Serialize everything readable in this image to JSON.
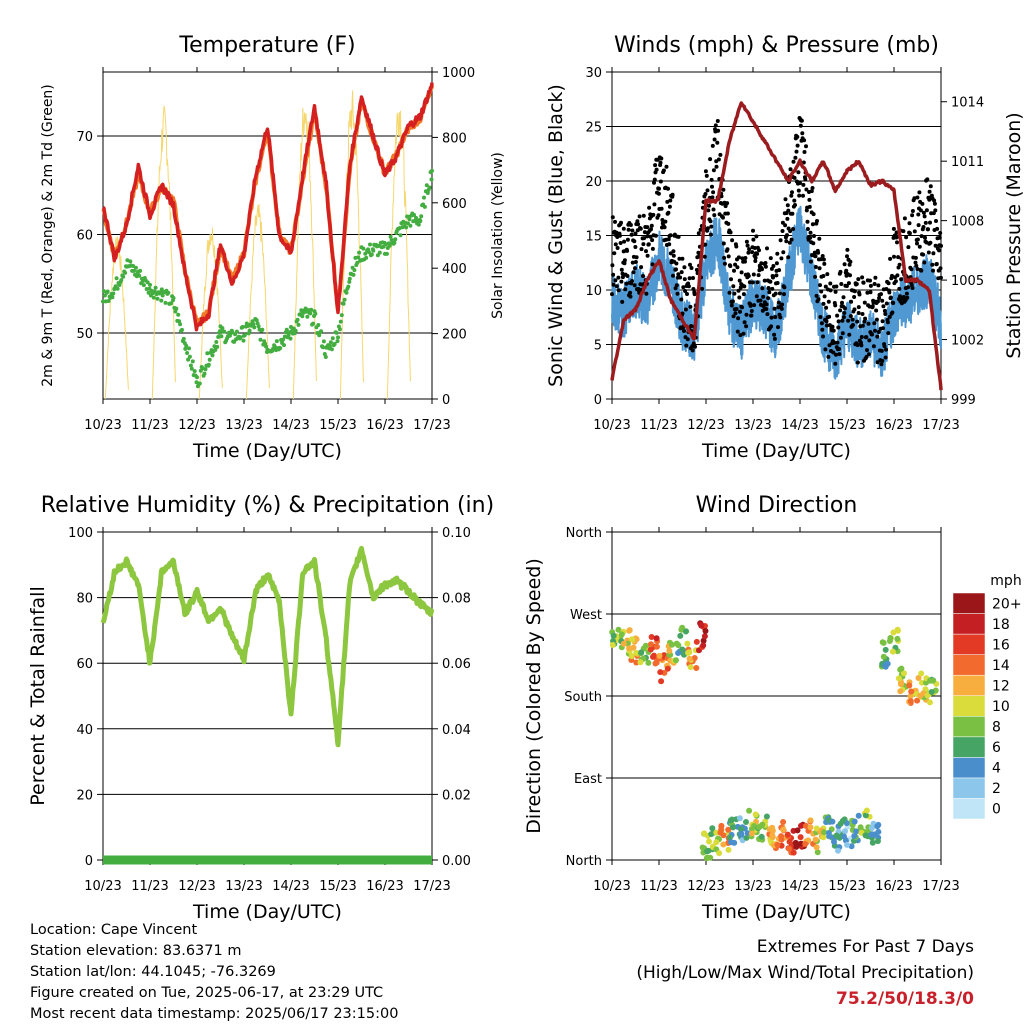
{
  "x_ticks": [
    "10/23",
    "11/23",
    "12/23",
    "13/23",
    "14/23",
    "15/23",
    "16/23",
    "17/23"
  ],
  "x_label": "Time (Day/UTC)",
  "panels": {
    "temperature": {
      "title": "Temperature (F)",
      "ylabel_left": "2m & 9m T (Red, Orange) & 2m Td (Green)",
      "ylabel_right": "Solar Insolation (Yellow)",
      "left_ticks": [
        "50",
        "60",
        "70"
      ],
      "right_ticks": [
        "0",
        "200",
        "400",
        "600",
        "800",
        "1000"
      ]
    },
    "winds": {
      "title": "Winds (mph) & Pressure (mb)",
      "ylabel_left": "Sonic Wind & Gust (Blue, Black)",
      "ylabel_right": "Station Pressure (Maroon)",
      "left_ticks": [
        "0",
        "5",
        "10",
        "15",
        "20",
        "25",
        "30"
      ],
      "right_ticks": [
        "999",
        "1002",
        "1005",
        "1008",
        "1011",
        "1014"
      ]
    },
    "humidity": {
      "title": "Relative Humidity (%) & Precipitation (in)",
      "ylabel_left": "Percent & Total Rainfall",
      "left_ticks": [
        "0",
        "20",
        "40",
        "60",
        "80",
        "100"
      ],
      "right_ticks": [
        "0.00",
        "0.02",
        "0.04",
        "0.06",
        "0.08",
        "0.10"
      ]
    },
    "direction": {
      "title": "Wind Direction",
      "ylabel_left": "Direction (Colored By Speed)",
      "left_ticks": [
        "North",
        "East",
        "South",
        "West",
        "North"
      ],
      "colorbar_title": "mph",
      "colorbar_labels": [
        "0",
        "2",
        "4",
        "6",
        "8",
        "10",
        "12",
        "14",
        "16",
        "18",
        "20+"
      ]
    }
  },
  "colors": {
    "temp_2m": "#d42020",
    "temp_9m": "#f07a28",
    "dewpoint": "#43ad40",
    "solar": "#f5d76e",
    "wind": "#4f98d2",
    "gust": "#000000",
    "pressure": "#9b1c1f",
    "rh": "#8dc63f",
    "precip": "#43ad40",
    "colorbar": [
      "#bfe5f7",
      "#8cc6ea",
      "#4a8fcb",
      "#46a565",
      "#7ac143",
      "#d9dc3a",
      "#f8ae3f",
      "#f26a2e",
      "#e23a24",
      "#c41f23",
      "#9b1618"
    ]
  },
  "info": {
    "location": "Location: Cape Vincent",
    "elevation": "Station elevation: 83.6371 m",
    "latlon": "Station lat/lon: 44.1045; -76.3269",
    "created": "Figure created on Tue, 2025-06-17, at 23:29 UTC",
    "timestamp": "Most recent data timestamp: 2025/06/17 23:15:00"
  },
  "extremes": {
    "title": "Extremes For Past 7 Days",
    "subtitle": "(High/Low/Max Wind/Total Precipitation)",
    "values": "75.2/50/18.3/0"
  },
  "chart_data": [
    {
      "type": "line",
      "title": "Temperature (F)",
      "xlabel": "Time (Day/UTC)",
      "ylabel": "2m & 9m T (Red, Orange) & 2m Td (Green)",
      "y2label": "Solar Insolation (Yellow)",
      "xlim": [
        0,
        7
      ],
      "ylim": [
        43.3,
        76.5
      ],
      "y2lim": [
        0,
        1000
      ],
      "x": [
        0,
        0.25,
        0.5,
        0.75,
        1,
        1.25,
        1.5,
        1.75,
        2,
        2.25,
        2.5,
        2.75,
        3,
        3.25,
        3.5,
        3.75,
        4,
        4.25,
        4.5,
        4.75,
        5,
        5.25,
        5.5,
        5.75,
        6,
        6.25,
        6.5,
        6.75,
        7
      ],
      "series": [
        {
          "name": "2m T",
          "values": [
            63,
            57.5,
            61,
            67,
            62,
            65,
            63,
            56,
            50.5,
            52,
            59,
            55,
            58,
            66,
            71,
            60,
            58,
            66,
            73,
            65,
            52,
            67,
            74,
            70,
            66,
            68,
            71,
            72,
            75.2
          ]
        },
        {
          "name": "9m T",
          "values": [
            62.5,
            57.8,
            61.2,
            66,
            62.2,
            64.8,
            63.5,
            56.2,
            50.8,
            52.1,
            58.8,
            55.2,
            58.2,
            65.5,
            70.5,
            60.2,
            58.2,
            65.5,
            72.5,
            64.8,
            52.3,
            66.5,
            73.5,
            69.8,
            66.2,
            68.2,
            70.8,
            71.8,
            74.8
          ]
        },
        {
          "name": "2m Td",
          "values": [
            53.5,
            54.5,
            57,
            56,
            54.5,
            54,
            53,
            49,
            45,
            47.5,
            50,
            49.5,
            50,
            51,
            48.5,
            49,
            50,
            52,
            51.5,
            48,
            50,
            56,
            58,
            58.5,
            58.5,
            60,
            61.5,
            61.5,
            66.5
          ]
        },
        {
          "name": "Solar",
          "values": [
            0,
            500,
            0,
            0,
            0,
            900,
            0,
            0,
            0,
            550,
            0,
            0,
            0,
            600,
            0,
            0,
            0,
            950,
            0,
            0,
            0,
            950,
            0,
            0,
            0,
            950,
            0,
            0,
            0
          ]
        }
      ]
    },
    {
      "type": "line",
      "title": "Winds (mph) & Pressure (mb)",
      "xlabel": "Time (Day/UTC)",
      "ylabel": "Sonic Wind & Gust (Blue, Black)",
      "y2label": "Station Pressure (Maroon)",
      "xlim": [
        0,
        7
      ],
      "ylim": [
        0,
        30
      ],
      "y2lim": [
        999,
        1015.5
      ],
      "x": [
        0,
        0.25,
        0.5,
        0.75,
        1,
        1.25,
        1.5,
        1.75,
        2,
        2.25,
        2.5,
        2.75,
        3,
        3.25,
        3.5,
        3.75,
        4,
        4.25,
        4.5,
        4.75,
        5,
        5.25,
        5.5,
        5.75,
        6,
        6.25,
        6.5,
        6.75,
        7
      ],
      "series": [
        {
          "name": "Sonic Wind",
          "values": [
            9,
            8,
            10,
            9,
            13,
            11,
            7,
            6,
            12,
            15,
            8,
            6,
            9,
            8,
            6,
            11,
            16,
            11,
            6,
            4,
            7,
            5,
            6,
            4,
            8,
            9,
            10,
            11,
            7
          ]
        },
        {
          "name": "Gust",
          "values": [
            13,
            12,
            14,
            13,
            20,
            16,
            9,
            8,
            17,
            22,
            12,
            9,
            12,
            11,
            9,
            16,
            23,
            16,
            9,
            6,
            10,
            7,
            8,
            6,
            12,
            13,
            15,
            17,
            12
          ]
        },
        {
          "name": "Station Pressure",
          "values": [
            1000,
            1003,
            1003.5,
            1005,
            1006,
            1004,
            1003,
            1002,
            1009,
            1009,
            1012,
            1014,
            1013,
            1012,
            1011,
            1010,
            1011,
            1010,
            1011,
            1009.5,
            1010.5,
            1011,
            1009.8,
            1010,
            1009.5,
            1005,
            1005,
            1004.5,
            999.5
          ]
        }
      ]
    },
    {
      "type": "line",
      "title": "Relative Humidity (%) & Precipitation (in)",
      "xlabel": "Time (Day/UTC)",
      "ylabel": "Percent & Total Rainfall",
      "xlim": [
        0,
        7
      ],
      "ylim": [
        0,
        100
      ],
      "y2lim": [
        0,
        0.1
      ],
      "x": [
        0,
        0.25,
        0.5,
        0.75,
        1,
        1.25,
        1.5,
        1.75,
        2,
        2.25,
        2.5,
        2.75,
        3,
        3.25,
        3.5,
        3.75,
        4,
        4.25,
        4.5,
        4.75,
        5,
        5.25,
        5.5,
        5.75,
        6,
        6.25,
        6.5,
        6.75,
        7
      ],
      "series": [
        {
          "name": "RH",
          "values": [
            72,
            88,
            91,
            84,
            60,
            88,
            91,
            75,
            82,
            73,
            77,
            68,
            61,
            82,
            87,
            79,
            44,
            88,
            91,
            67,
            36,
            84,
            95,
            80,
            84,
            85,
            82,
            78,
            75
          ]
        },
        {
          "name": "Precipitation",
          "values": [
            0,
            0,
            0,
            0,
            0,
            0,
            0,
            0,
            0,
            0,
            0,
            0,
            0,
            0,
            0,
            0,
            0,
            0,
            0,
            0,
            0,
            0,
            0,
            0,
            0,
            0,
            0,
            0,
            0
          ]
        }
      ]
    },
    {
      "type": "scatter",
      "title": "Wind Direction",
      "xlabel": "Time (Day/UTC)",
      "ylabel": "Direction (Colored By Speed)",
      "xlim": [
        0,
        7
      ],
      "ylim": [
        0,
        360
      ],
      "x": [
        0.1,
        0.3,
        0.5,
        0.7,
        0.9,
        1.1,
        1.3,
        1.5,
        1.7,
        1.9,
        2.0,
        2.2,
        2.4,
        2.6,
        2.8,
        3.0,
        3.2,
        3.4,
        3.6,
        3.8,
        4.0,
        4.2,
        4.4,
        4.6,
        4.8,
        5.0,
        5.2,
        5.4,
        5.6,
        5.8,
        6.0,
        6.2,
        6.4,
        6.6,
        6.8
      ],
      "series": [
        {
          "name": "Direction",
          "values": [
            245,
            240,
            230,
            225,
            230,
            210,
            230,
            240,
            225,
            245,
            15,
            20,
            25,
            30,
            35,
            40,
            35,
            25,
            30,
            20,
            25,
            30,
            20,
            35,
            25,
            30,
            35,
            40,
            30,
            225,
            240,
            200,
            185,
            190,
            185
          ]
        },
        {
          "name": "Speed",
          "values": [
            8,
            10,
            12,
            9,
            16,
            14,
            10,
            6,
            12,
            18,
            9,
            8,
            12,
            6,
            5,
            10,
            8,
            12,
            14,
            16,
            18,
            14,
            10,
            6,
            4,
            3,
            6,
            8,
            4,
            6,
            8,
            10,
            12,
            10,
            8
          ]
        }
      ]
    }
  ]
}
